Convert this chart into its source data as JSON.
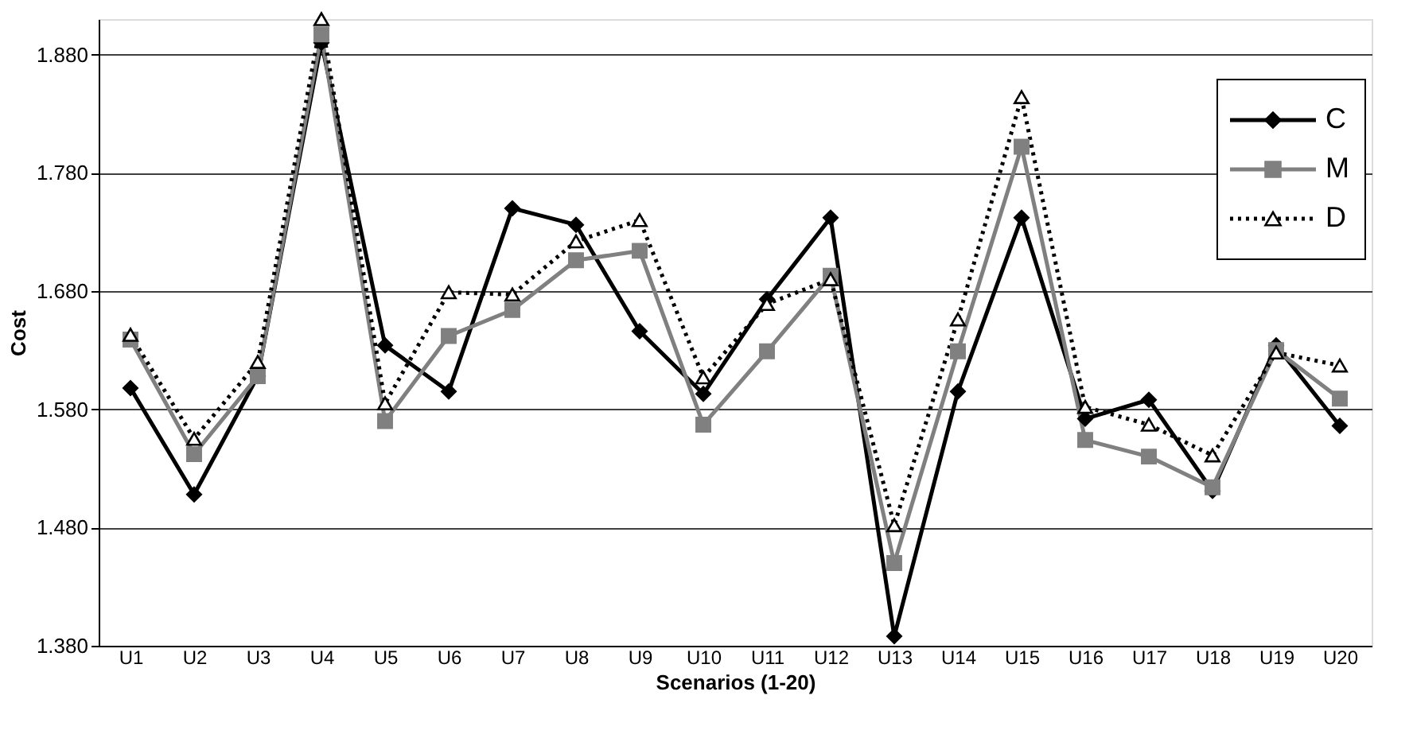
{
  "chart_data": {
    "type": "line",
    "xlabel": "Scenarios (1-20)",
    "ylabel": "Cost",
    "categories": [
      "U1",
      "U2",
      "U3",
      "U4",
      "U5",
      "U6",
      "U7",
      "U8",
      "U9",
      "U10",
      "U11",
      "U12",
      "U13",
      "U14",
      "U15",
      "U16",
      "U17",
      "U18",
      "U19",
      "U20"
    ],
    "series": [
      {
        "name": "C",
        "color": "#000000",
        "marker": "diamond",
        "line_style": "solid",
        "values": [
          1.598,
          1.508,
          1.608,
          1.89,
          1.634,
          1.595,
          1.75,
          1.736,
          1.646,
          1.593,
          1.673,
          1.742,
          1.388,
          1.595,
          1.742,
          1.572,
          1.588,
          1.511,
          1.634,
          1.566
        ]
      },
      {
        "name": "M",
        "color": "#808080",
        "marker": "square",
        "line_style": "solid",
        "values": [
          1.639,
          1.542,
          1.608,
          1.897,
          1.57,
          1.642,
          1.664,
          1.706,
          1.714,
          1.567,
          1.629,
          1.693,
          1.45,
          1.629,
          1.802,
          1.554,
          1.54,
          1.514,
          1.63,
          1.589
        ]
      },
      {
        "name": "D",
        "color": "#000000",
        "marker": "triangle",
        "line_style": "dotted",
        "values": [
          1.643,
          1.555,
          1.62,
          1.91,
          1.585,
          1.679,
          1.677,
          1.722,
          1.74,
          1.607,
          1.669,
          1.69,
          1.482,
          1.656,
          1.844,
          1.582,
          1.567,
          1.541,
          1.628,
          1.617
        ]
      }
    ],
    "ylim": [
      1.38,
      1.91
    ],
    "yticks": [
      {
        "value": 1.38,
        "label": "1.380"
      },
      {
        "value": 1.48,
        "label": "1.480"
      },
      {
        "value": 1.58,
        "label": "1.580"
      },
      {
        "value": 1.68,
        "label": "1.680"
      },
      {
        "value": 1.78,
        "label": "1.780"
      },
      {
        "value": 1.88,
        "label": "1.880"
      }
    ],
    "grid": "y",
    "legend": "top right"
  }
}
